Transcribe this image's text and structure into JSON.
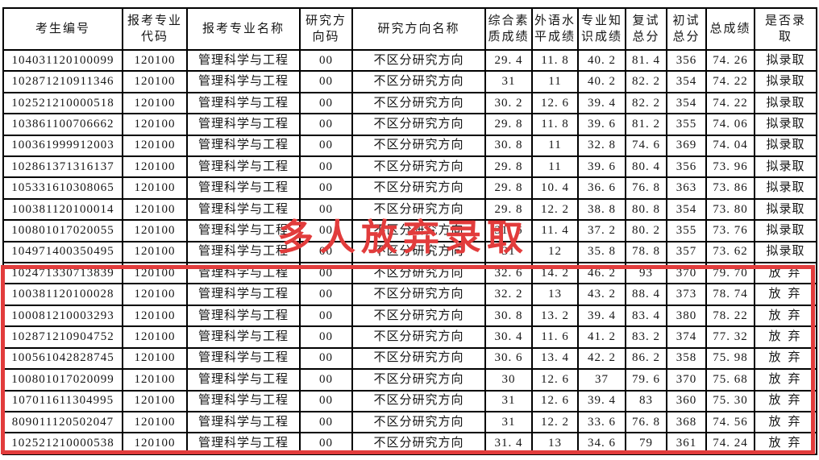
{
  "annotation": {
    "overlay_text": "多人放弃录取",
    "highlight_color": "#e23c3c"
  },
  "table": {
    "headers": [
      "考生编号",
      "报考专业\n代码",
      "报考专业名称",
      "研究方\n向码",
      "研究方向名称",
      "综合素\n质成绩",
      "外语水\n平成绩",
      "专业知\n识成绩",
      "复试\n总分",
      "初试\n总分",
      "总成绩",
      "是否录\n取"
    ],
    "header_keys": [
      "candidate-id",
      "major-code",
      "major-name",
      "direction-code",
      "direction-name",
      "comprehensive-score",
      "foreign-language-score",
      "professional-knowledge-score",
      "retest-total",
      "initial-test-total",
      "total-score",
      "admission-status"
    ],
    "rows": [
      [
        "104031120100099",
        "120100",
        "管理科学与工程",
        "00",
        "不区分研究方向",
        "29.4",
        "11.8",
        "40.2",
        "81.4",
        "356",
        "74.26",
        "拟录取"
      ],
      [
        "102871210911346",
        "120100",
        "管理科学与工程",
        "00",
        "不区分研究方向",
        "31",
        "11",
        "40.2",
        "82.2",
        "354",
        "74.22",
        "拟录取"
      ],
      [
        "102521210000518",
        "120100",
        "管理科学与工程",
        "00",
        "不区分研究方向",
        "30.2",
        "12.6",
        "39.4",
        "82.2",
        "354",
        "74.22",
        "拟录取"
      ],
      [
        "103861100706662",
        "120100",
        "管理科学与工程",
        "00",
        "不区分研究方向",
        "29.8",
        "11.8",
        "39.6",
        "81.2",
        "355",
        "74.06",
        "拟录取"
      ],
      [
        "100361999912003",
        "120100",
        "管理科学与工程",
        "00",
        "不区分研究方向",
        "30.8",
        "11",
        "32.8",
        "74.6",
        "369",
        "74.04",
        "拟录取"
      ],
      [
        "102861371316137",
        "120100",
        "管理科学与工程",
        "00",
        "不区分研究方向",
        "29.8",
        "11",
        "39.6",
        "80.4",
        "356",
        "73.96",
        "拟录取"
      ],
      [
        "105331610308065",
        "120100",
        "管理科学与工程",
        "00",
        "不区分研究方向",
        "29.8",
        "10.4",
        "36.6",
        "76.8",
        "363",
        "73.86",
        "拟录取"
      ],
      [
        "100381120100014",
        "120100",
        "管理科学与工程",
        "00",
        "不区分研究方向",
        "29.8",
        "12.2",
        "38.8",
        "80.8",
        "354",
        "73.80",
        "拟录取"
      ],
      [
        "100801017020055",
        "120100",
        "管理科学与工程",
        "00",
        "不区分研究方向",
        "31.6",
        "11.4",
        "37.2",
        "80.2",
        "355",
        "73.76",
        "拟录取"
      ],
      [
        "104971400350495",
        "120100",
        "管理科学与工程",
        "00",
        "不区分研究方向",
        "31",
        "12",
        "35.8",
        "78.8",
        "357",
        "73.62",
        "拟录取"
      ],
      [
        "102471330713839",
        "120100",
        "管理科学与工程",
        "00",
        "不区分研究方向",
        "32.6",
        "14.2",
        "46.2",
        "93",
        "370",
        "79.70",
        "放弃"
      ],
      [
        "100381120100028",
        "120100",
        "管理科学与工程",
        "00",
        "不区分研究方向",
        "32.2",
        "13",
        "43.2",
        "88.4",
        "373",
        "78.74",
        "放弃"
      ],
      [
        "100081210003293",
        "120100",
        "管理科学与工程",
        "00",
        "不区分研究方向",
        "30.8",
        "13.2",
        "39.4",
        "83.4",
        "380",
        "78.22",
        "放弃"
      ],
      [
        "102871210904752",
        "120100",
        "管理科学与工程",
        "00",
        "不区分研究方向",
        "30.4",
        "11.6",
        "41.2",
        "83.2",
        "374",
        "77.32",
        "放弃"
      ],
      [
        "100561042828745",
        "120100",
        "管理科学与工程",
        "00",
        "不区分研究方向",
        "30.6",
        "13.4",
        "42.2",
        "86.2",
        "358",
        "75.98",
        "放弃"
      ],
      [
        "100801017020099",
        "120100",
        "管理科学与工程",
        "00",
        "不区分研究方向",
        "30",
        "12.6",
        "37",
        "79.6",
        "370",
        "75.68",
        "放弃"
      ],
      [
        "107011611304995",
        "120100",
        "管理科学与工程",
        "00",
        "不区分研究方向",
        "31",
        "12.6",
        "39.4",
        "83",
        "360",
        "75.30",
        "放弃"
      ],
      [
        "809011120502047",
        "120100",
        "管理科学与工程",
        "00",
        "不区分研究方向",
        "31",
        "12.2",
        "33.6",
        "76.8",
        "368",
        "74.56",
        "放弃"
      ],
      [
        "102521210000538",
        "120100",
        "管理科学与工程",
        "00",
        "不区分研究方向",
        "31.4",
        "13",
        "34.6",
        "79",
        "361",
        "74.24",
        "放弃"
      ]
    ]
  }
}
